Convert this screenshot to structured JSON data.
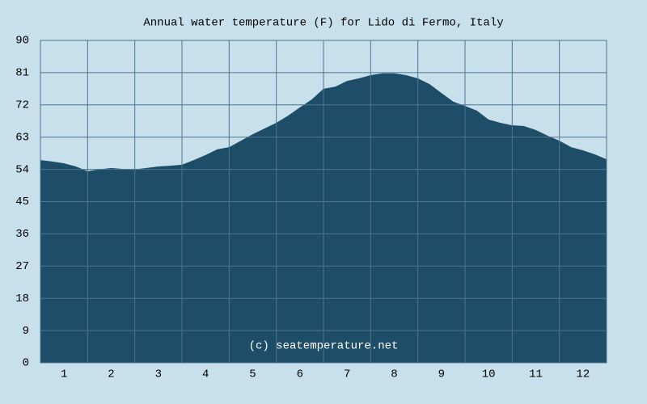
{
  "chart_data": {
    "type": "area",
    "title": "Annual water temperature (F) for Lido di Fermo, Italy",
    "annotation": "(c) seatemperature.net",
    "x": [
      0.5,
      0.75,
      1,
      1.25,
      1.5,
      1.75,
      2,
      2.25,
      2.5,
      2.75,
      3,
      3.25,
      3.5,
      3.75,
      4,
      4.25,
      4.5,
      4.75,
      5,
      5.25,
      5.5,
      5.75,
      6,
      6.25,
      6.5,
      6.75,
      7,
      7.25,
      7.5,
      7.75,
      8,
      8.25,
      8.5,
      8.75,
      9,
      9.25,
      9.5,
      9.75,
      10,
      10.25,
      10.5,
      10.75,
      11,
      11.25,
      11.5,
      11.75,
      12,
      12.25,
      12.5
    ],
    "values": [
      56.6,
      56.2,
      55.7,
      54.8,
      53.5,
      54,
      54.4,
      54.1,
      54,
      54.4,
      54.8,
      55,
      55.3,
      56.6,
      58,
      59.6,
      60.2,
      62,
      63.8,
      65.4,
      67,
      69,
      71.3,
      73.5,
      76.5,
      77.1,
      78.7,
      79.4,
      80.3,
      80.8,
      80.8,
      80.3,
      79.4,
      77.8,
      75.3,
      72.9,
      71.7,
      70.4,
      67.9,
      67,
      66.3,
      66.1,
      65,
      63.4,
      62,
      60.2,
      59.3,
      58.2,
      56.8
    ],
    "color": "#1e4d68",
    "xlim": [
      0.5,
      12.5
    ],
    "xticks": [
      1,
      2,
      3,
      4,
      5,
      6,
      7,
      8,
      9,
      10,
      11,
      12
    ],
    "ylim": [
      0,
      90
    ],
    "yticks": [
      0,
      9,
      18,
      27,
      36,
      45,
      54,
      63,
      72,
      81,
      90
    ],
    "grid": true
  }
}
